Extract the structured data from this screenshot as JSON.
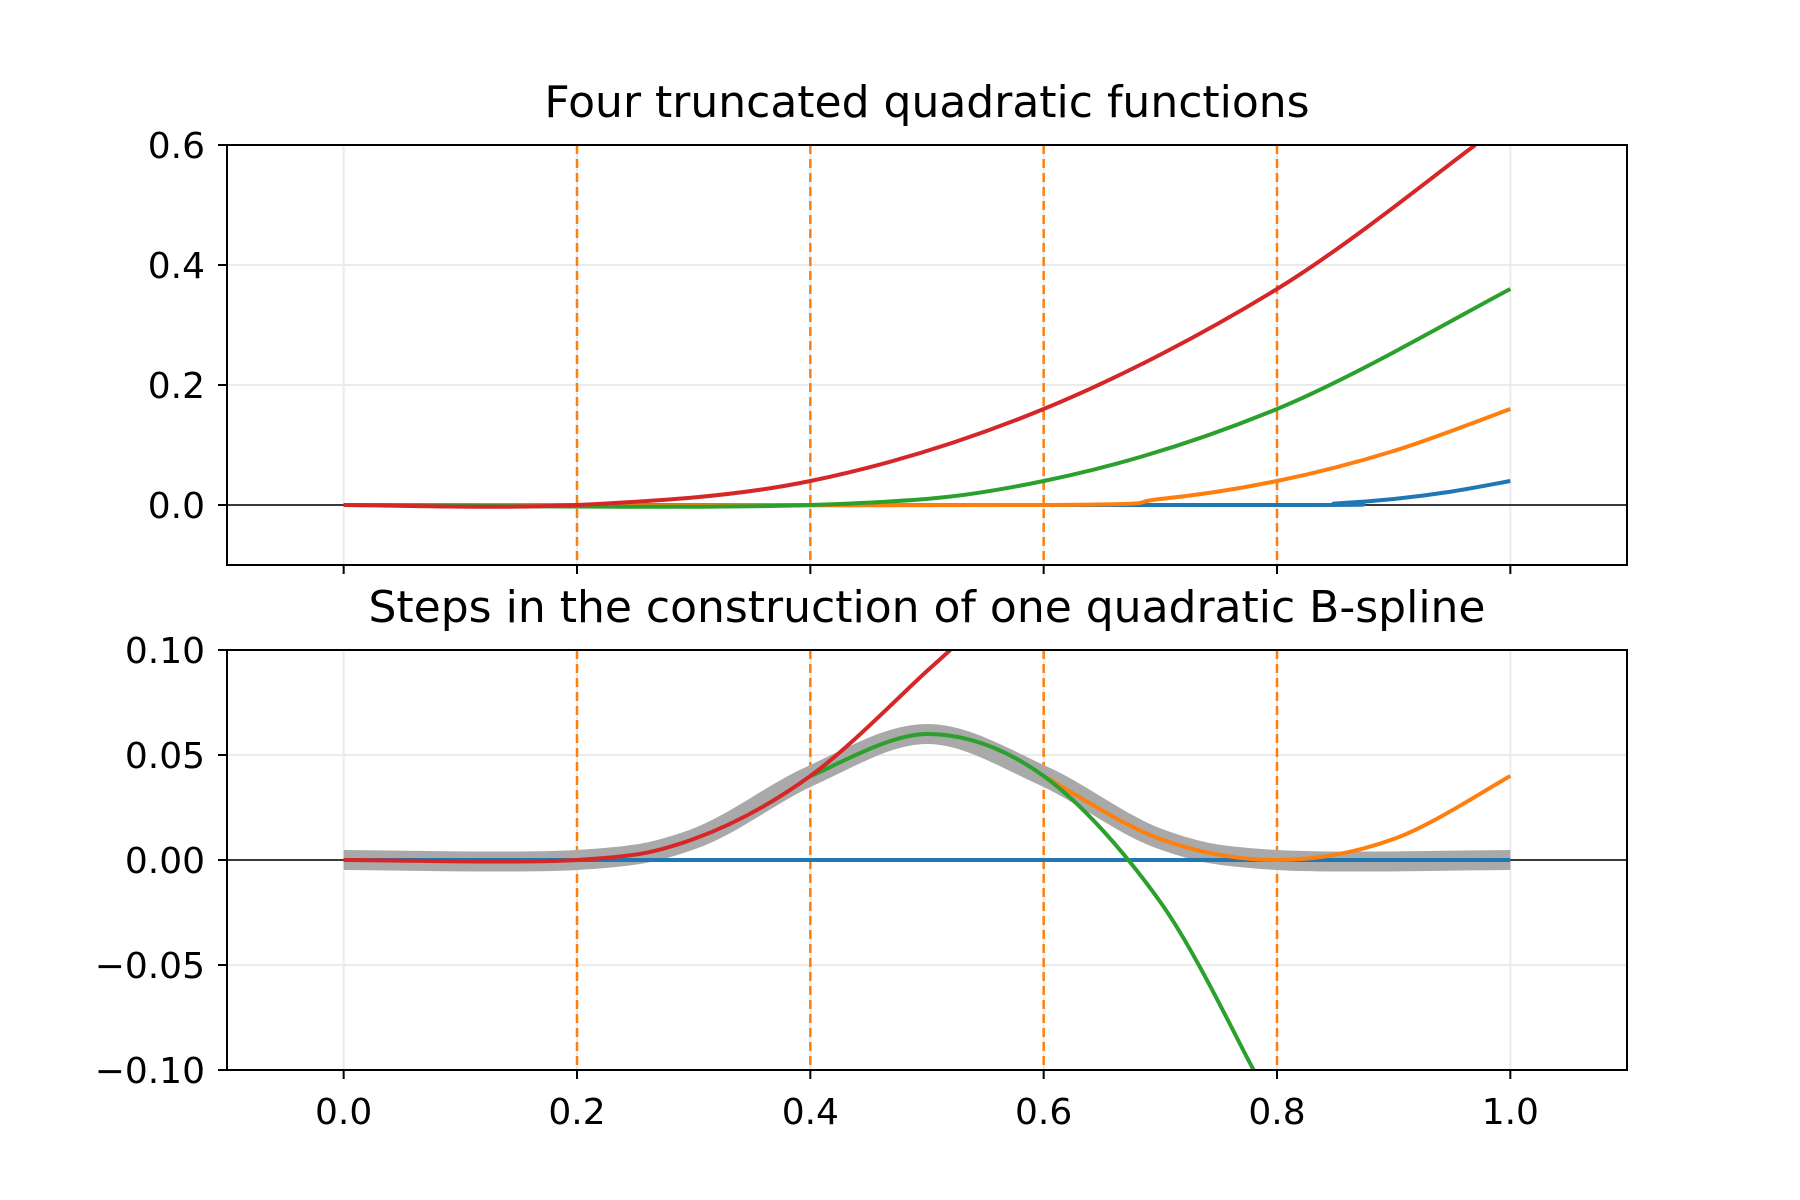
{
  "chart_data": [
    {
      "type": "line",
      "title": "Four truncated quadratic functions",
      "xlabel": "",
      "ylabel": "",
      "xlim": [
        -0.1,
        1.1
      ],
      "ylim": [
        -0.1,
        0.6
      ],
      "xticks": [
        "0.0",
        "0.2",
        "0.4",
        "0.6",
        "0.8",
        "1.0"
      ],
      "yticks": [
        "0.0",
        "0.2",
        "0.4",
        "0.6"
      ],
      "grid": true,
      "legend": "none",
      "zero_line": true,
      "knot_lines": {
        "x": [
          0.2,
          0.4,
          0.6,
          0.8
        ],
        "color": "#ff7f0e",
        "style": "dashed"
      },
      "series": [
        {
          "color": "#1f77b4",
          "knot": 0.8,
          "x": [
            0.0,
            0.8,
            0.85,
            0.9,
            0.95,
            1.0
          ],
          "y": [
            0.0,
            0.0,
            0.0025,
            0.01,
            0.0225,
            0.04
          ]
        },
        {
          "color": "#ff7f0e",
          "knot": 0.6,
          "x": [
            0.0,
            0.6,
            0.7,
            0.8,
            0.9,
            1.0
          ],
          "y": [
            0.0,
            0.0,
            0.01,
            0.04,
            0.09,
            0.16
          ]
        },
        {
          "color": "#2ca02c",
          "knot": 0.4,
          "x": [
            0.0,
            0.4,
            0.6,
            0.8,
            1.0
          ],
          "y": [
            0.0,
            0.0,
            0.04,
            0.16,
            0.36
          ]
        },
        {
          "color": "#d62728",
          "knot": 0.2,
          "x": [
            0.0,
            0.2,
            0.4,
            0.6,
            0.8,
            0.97
          ],
          "y": [
            0.0,
            0.0,
            0.04,
            0.16,
            0.36,
            0.6
          ]
        }
      ]
    },
    {
      "type": "line",
      "title": "Steps in the construction of one quadratic B-spline",
      "xlabel": "",
      "ylabel": "",
      "xlim": [
        -0.1,
        1.1
      ],
      "ylim": [
        -0.1,
        0.1
      ],
      "xticks": [
        "0.0",
        "0.2",
        "0.4",
        "0.6",
        "0.8",
        "1.0"
      ],
      "yticks": [
        "−0.10",
        "−0.05",
        "0.00",
        "0.05",
        "0.10"
      ],
      "grid": true,
      "legend": "none",
      "zero_line": true,
      "knot_lines": {
        "x": [
          0.2,
          0.4,
          0.6,
          0.8
        ],
        "color": "#ff7f0e",
        "style": "dashed"
      },
      "series": [
        {
          "color": "#a9a9a9",
          "role": "B-spline",
          "x": [
            0.0,
            0.2,
            0.3,
            0.4,
            0.5,
            0.6,
            0.7,
            0.8,
            1.0
          ],
          "y": [
            0.0,
            0.0,
            0.01,
            0.04,
            0.06,
            0.04,
            0.01,
            0.0,
            0.0
          ]
        },
        {
          "color": "#1f77b4",
          "x": [
            0.0,
            0.8,
            1.0
          ],
          "y": [
            0.0,
            0.0,
            0.0
          ]
        },
        {
          "color": "#ff7f0e",
          "x": [
            0.6,
            0.7,
            0.8,
            0.9,
            1.0
          ],
          "y": [
            0.04,
            0.01,
            0.0,
            0.01,
            0.04
          ]
        },
        {
          "color": "#2ca02c",
          "x": [
            0.4,
            0.5,
            0.6,
            0.7,
            0.78
          ],
          "y": [
            0.04,
            0.06,
            0.04,
            -0.02,
            -0.1
          ]
        },
        {
          "color": "#d62728",
          "x": [
            0.0,
            0.2,
            0.3,
            0.4,
            0.5,
            0.52
          ],
          "y": [
            0.0,
            0.0,
            0.01,
            0.04,
            0.09,
            0.1
          ]
        }
      ]
    }
  ]
}
